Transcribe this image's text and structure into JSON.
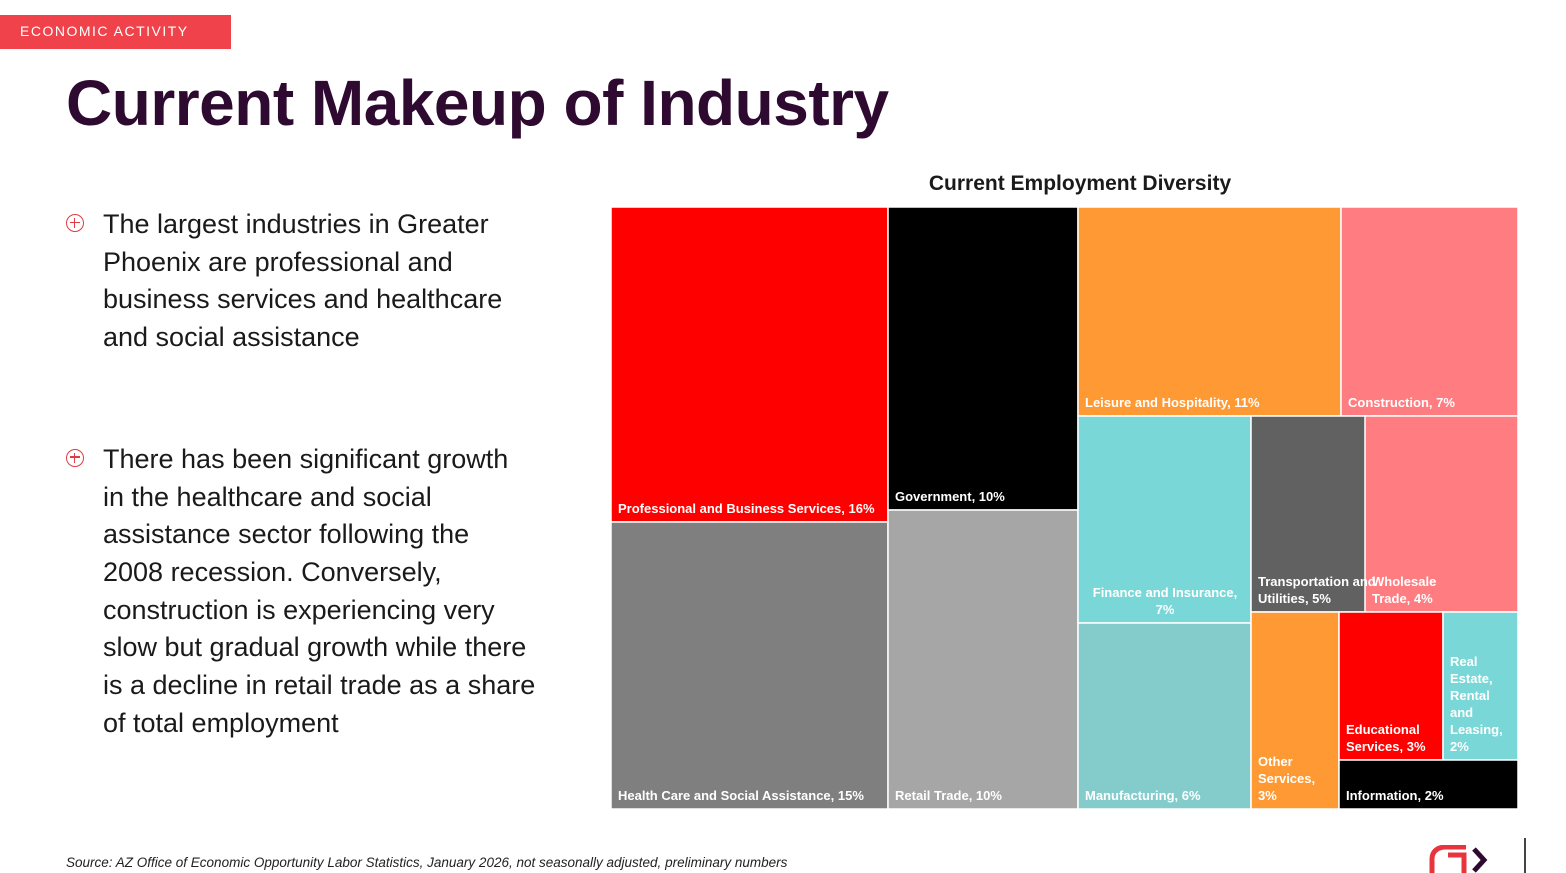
{
  "header": {
    "section_tag": "ECONOMIC ACTIVITY",
    "title": "Current Makeup of Industry"
  },
  "bullets": [
    "The largest industries in Greater Phoenix are professional and business services and healthcare and social assistance",
    "There has been significant growth in the healthcare and social assistance sector following the 2008 recession. Conversely, construction is experiencing very slow but gradual growth while there is a decline in retail trade as a share of total employment"
  ],
  "chart_data": {
    "type": "treemap",
    "title": "Current Employment Diversity",
    "unit": "% of total employment",
    "items": [
      {
        "name": "Professional and Business Services",
        "value": 16,
        "label": "Professional and Business Services, 16%",
        "color": "#ff0000"
      },
      {
        "name": "Health Care and Social Assistance",
        "value": 15,
        "label": "Health Care and Social Assistance, 15%",
        "color": "#7f7f7f"
      },
      {
        "name": "Government",
        "value": 10,
        "label": "Government, 10%",
        "color": "#000000"
      },
      {
        "name": "Retail Trade",
        "value": 10,
        "label": "Retail Trade, 10%",
        "color": "#a6a6a6"
      },
      {
        "name": "Leisure and Hospitality",
        "value": 11,
        "label": "Leisure and Hospitality, 11%",
        "color": "#ff9933"
      },
      {
        "name": "Construction",
        "value": 7,
        "label": "Construction, 7%",
        "color": "#ff7c80"
      },
      {
        "name": "Finance and Insurance",
        "value": 7,
        "label": "Finance and Insurance, 7%",
        "color": "#7ad7d7"
      },
      {
        "name": "Manufacturing",
        "value": 6,
        "label": "Manufacturing, 6%",
        "color": "#84cccc"
      },
      {
        "name": "Transportation and Utilities",
        "value": 5,
        "label": "Transportation and Utilities, 5%",
        "color": "#616161"
      },
      {
        "name": "Wholesale Trade",
        "value": 4,
        "label": "Wholesale Trade, 4%",
        "color": "#ff7c80"
      },
      {
        "name": "Other Services",
        "value": 3,
        "label": "Other Services, 3%",
        "color": "#ff9933"
      },
      {
        "name": "Educational Services",
        "value": 3,
        "label": "Educational Services, 3%",
        "color": "#ff0000"
      },
      {
        "name": "Real Estate, Rental and Leasing",
        "value": 2,
        "label": "Real Estate, Rental and Leasing, 2%",
        "color": "#7ad7d7"
      },
      {
        "name": "Information",
        "value": 2,
        "label": "Information, 2%",
        "color": "#000000"
      }
    ]
  },
  "footer": {
    "source": "Source: AZ Office of Economic Opportunity Labor Statistics, January 2026, not seasonally adjusted, preliminary numbers",
    "logo_icon": "gpec-logo-icon",
    "logo_color": "#e8343c"
  }
}
